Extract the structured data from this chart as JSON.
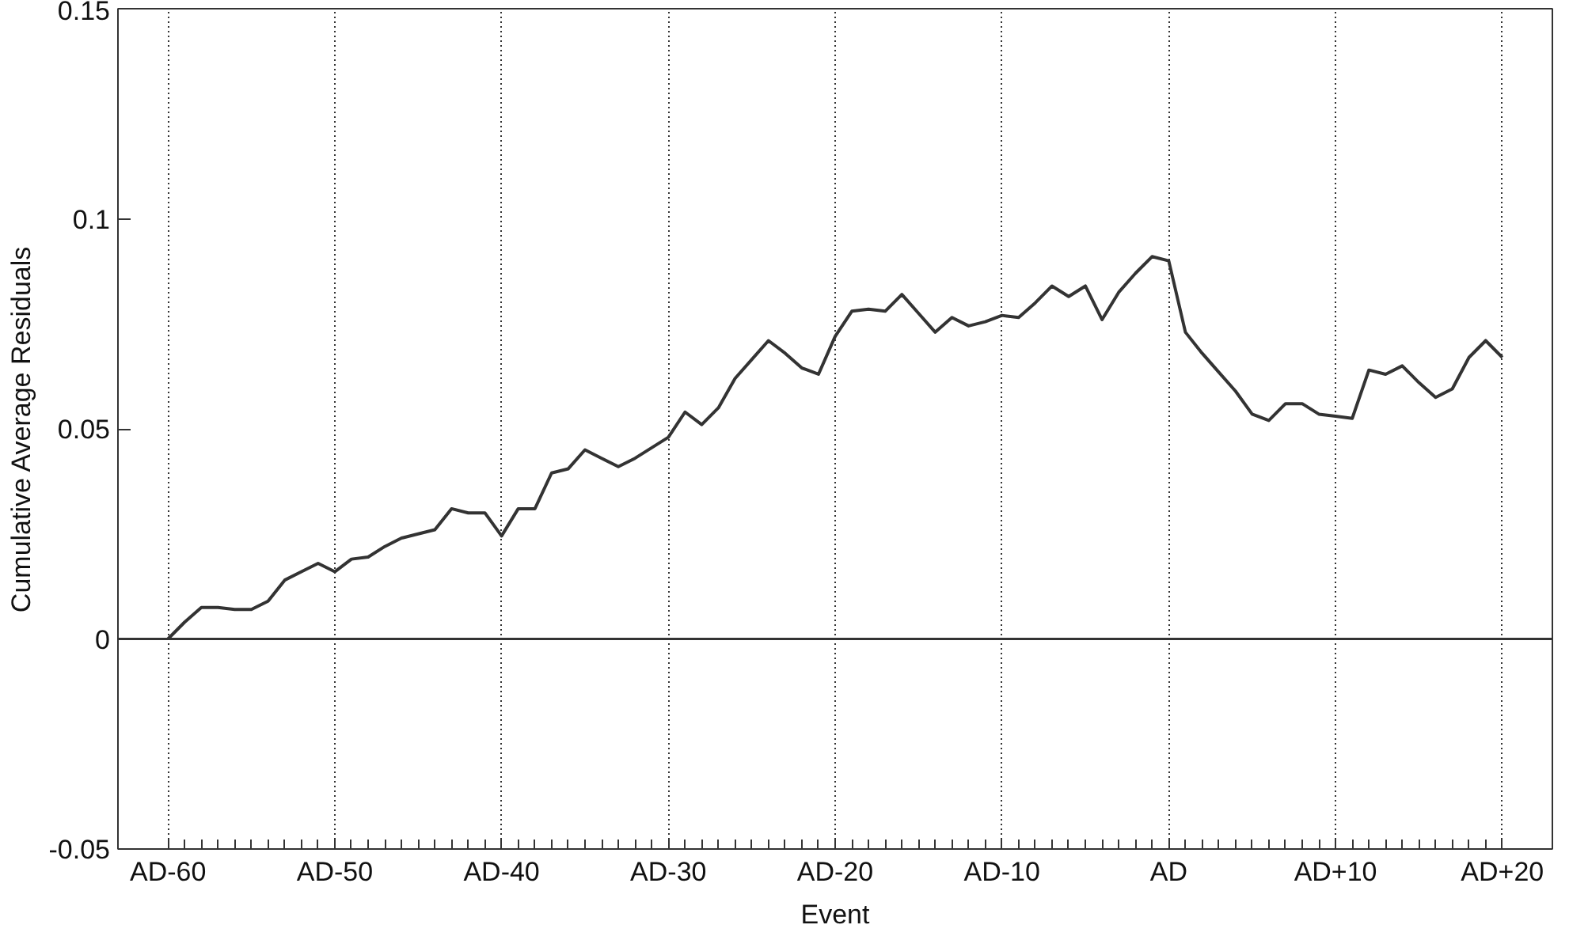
{
  "chart_data": {
    "type": "line",
    "xlabel": "Event",
    "ylabel": "Cumulative Average Residuals",
    "categories": [
      "AD-60",
      null,
      null,
      null,
      null,
      null,
      null,
      null,
      null,
      null,
      "AD-50",
      null,
      null,
      null,
      null,
      null,
      null,
      null,
      null,
      null,
      "AD-40",
      null,
      null,
      null,
      null,
      null,
      null,
      null,
      null,
      null,
      "AD-30",
      null,
      null,
      null,
      null,
      null,
      null,
      null,
      null,
      null,
      "AD-20",
      null,
      null,
      null,
      null,
      null,
      null,
      null,
      null,
      null,
      "AD-10",
      null,
      null,
      null,
      null,
      null,
      null,
      null,
      null,
      null,
      "AD",
      null,
      null,
      null,
      null,
      null,
      null,
      null,
      null,
      null,
      "AD+10",
      null,
      null,
      null,
      null,
      null,
      null,
      null,
      null,
      null,
      "AD+20"
    ],
    "series": [
      {
        "color": "#333333",
        "values": [
          0,
          0.004,
          0.0075,
          0.0075,
          0.007,
          0.007,
          0.009,
          0.014,
          0.016,
          0.018,
          0.016,
          0.019,
          0.0195,
          0.022,
          0.024,
          0.025,
          0.026,
          0.031,
          0.03,
          0.03,
          0.0245,
          0.031,
          0.031,
          0.0395,
          0.0405,
          0.045,
          0.043,
          0.041,
          0.043,
          0.0455,
          0.048,
          0.054,
          0.051,
          0.055,
          0.062,
          0.0665,
          0.071,
          0.068,
          0.0645,
          0.063,
          0.072,
          0.078,
          0.0785,
          0.078,
          0.082,
          0.0775,
          0.073,
          0.0765,
          0.0745,
          0.0755,
          0.077,
          0.0765,
          0.08,
          0.084,
          0.0815,
          0.084,
          0.076,
          0.0825,
          0.087,
          0.091,
          0.09,
          0.073,
          0.068,
          0.0635,
          0.059,
          0.0535,
          0.052,
          0.056,
          0.056,
          0.0535,
          0.053,
          0.0525,
          0.064,
          0.063,
          0.065,
          0.061,
          0.0575,
          0.0595,
          0.067,
          0.071,
          0.067
        ]
      }
    ],
    "ylim": [
      -0.05,
      0.15
    ],
    "yticks": [
      -0.05,
      0,
      0.05,
      0.1,
      0.15
    ],
    "grid": "x",
    "marker": "none",
    "line_style": "solid",
    "ref_lines": [
      {
        "axis": "y",
        "value": 0,
        "label": null,
        "color": "#333333",
        "line_style": "solid"
      }
    ]
  }
}
